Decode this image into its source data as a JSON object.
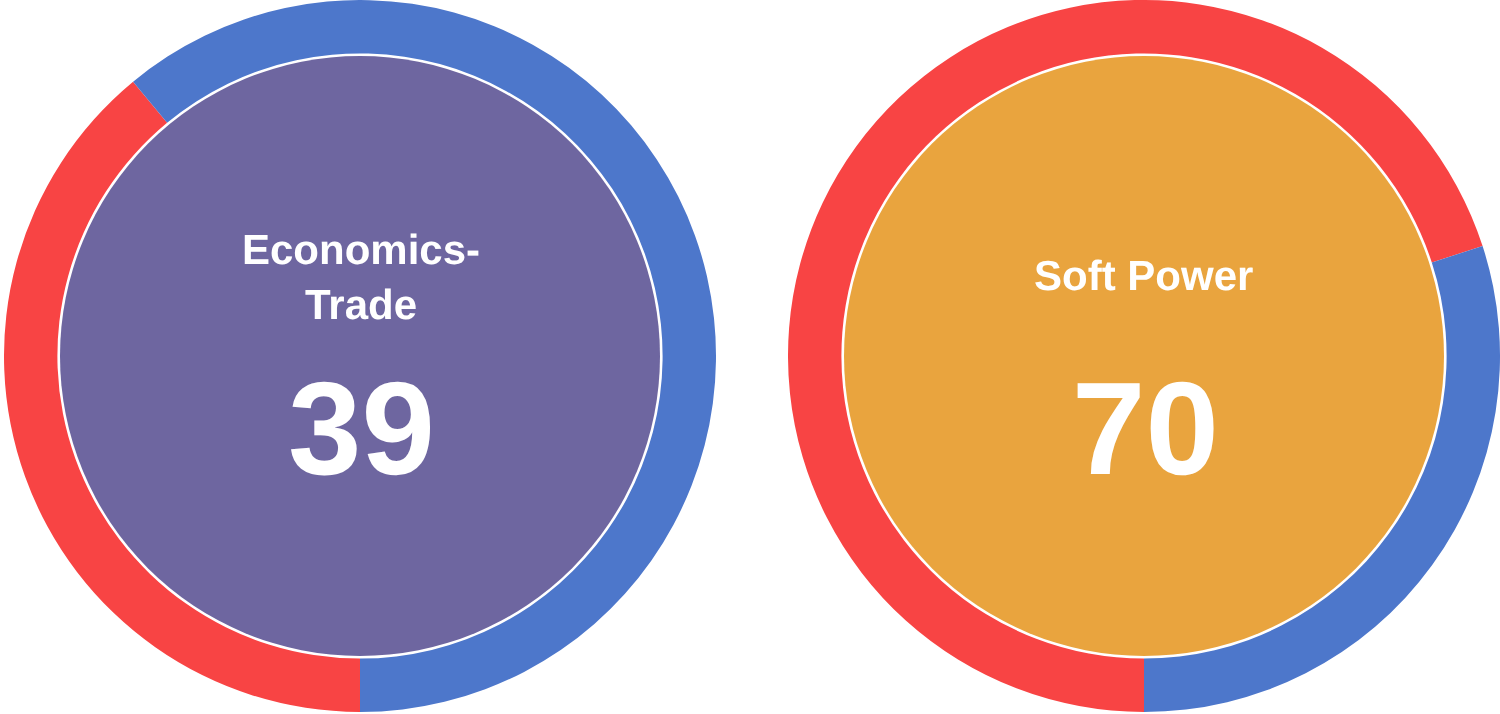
{
  "chart_data": [
    {
      "type": "donut",
      "title": "Economics-Trade",
      "categories": [
        null,
        null
      ],
      "values": [
        39,
        61
      ],
      "colors": [
        "#f84444",
        "#4d77cb"
      ],
      "value_labels": [
        "39",
        null
      ]
    },
    {
      "type": "donut",
      "title": "Soft Power",
      "categories": [
        null,
        null
      ],
      "values": [
        70,
        30
      ],
      "colors": [
        "#f84444",
        "#4d77cb"
      ],
      "value_labels": [
        "70",
        null
      ]
    }
  ]
}
